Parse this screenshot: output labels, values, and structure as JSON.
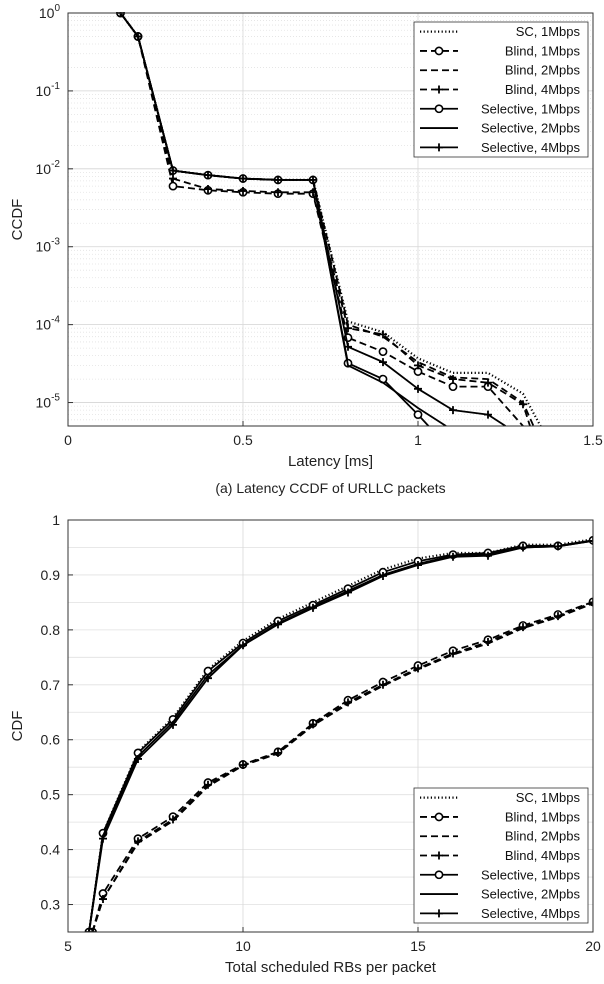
{
  "chart_data": [
    {
      "type": "line",
      "xlabel": "Latency [ms]",
      "ylabel": "CCDF",
      "caption": "(a) Latency CCDF of URLLC packets",
      "xlim": [
        0,
        1.5
      ],
      "ylim": [
        5e-06,
        1
      ],
      "yscale": "log",
      "xticks": [
        "0",
        "0.5",
        "1",
        "1.5"
      ],
      "yticks": [
        {
          "base": "10",
          "exp": "0"
        },
        {
          "base": "10",
          "exp": "-1"
        },
        {
          "base": "10",
          "exp": "-2"
        },
        {
          "base": "10",
          "exp": "-3"
        },
        {
          "base": "10",
          "exp": "-4"
        },
        {
          "base": "10",
          "exp": "-5"
        }
      ],
      "grid": true,
      "legend_position": "top-right",
      "series": [
        {
          "name": "SC, 1Mbps",
          "style": "dotted",
          "marker": "none",
          "x": [
            0.15,
            0.2,
            0.3,
            0.4,
            0.5,
            0.6,
            0.7,
            0.8,
            0.9,
            1.0,
            1.1,
            1.2,
            1.3,
            1.35
          ],
          "y": [
            1,
            0.5,
            0.0095,
            0.0083,
            0.0075,
            0.0072,
            0.0072,
            0.00011,
            8e-05,
            3.7e-05,
            2.4e-05,
            2.4e-05,
            1.3e-05,
            5e-06
          ]
        },
        {
          "name": "Blind, 1Mbps",
          "style": "dashed",
          "marker": "circle",
          "x": [
            0.15,
            0.2,
            0.3,
            0.4,
            0.5,
            0.6,
            0.7,
            0.8,
            0.9,
            1.0,
            1.1,
            1.2,
            1.3
          ],
          "y": [
            1,
            0.5,
            0.006,
            0.0053,
            0.005,
            0.0048,
            0.0048,
            6.8e-05,
            4.5e-05,
            2.5e-05,
            1.6e-05,
            1.6e-05,
            5e-06
          ]
        },
        {
          "name": "Blind, 2Mpbs",
          "style": "dashed",
          "marker": "none",
          "x": [
            0.15,
            0.2,
            0.3,
            0.4,
            0.5,
            0.6,
            0.7,
            0.8,
            0.9,
            1.0,
            1.1,
            1.2,
            1.3,
            1.33
          ],
          "y": [
            1,
            0.5,
            0.0095,
            0.0083,
            0.0075,
            0.0072,
            0.0072,
            0.0001,
            7e-05,
            3.3e-05,
            2.1e-05,
            2e-05,
            1e-05,
            5e-06
          ]
        },
        {
          "name": "Blind, 4Mbps",
          "style": "dashed",
          "marker": "plus",
          "x": [
            0.15,
            0.2,
            0.3,
            0.4,
            0.5,
            0.6,
            0.7,
            0.8,
            0.9,
            1.0,
            1.1,
            1.2,
            1.3,
            1.32
          ],
          "y": [
            1,
            0.5,
            0.0075,
            0.0055,
            0.0052,
            0.005,
            0.005,
            9e-05,
            7.5e-05,
            3e-05,
            2e-05,
            1.8e-05,
            9.5e-06,
            5e-06
          ]
        },
        {
          "name": "Selective, 1Mbps",
          "style": "solid",
          "marker": "circle",
          "x": [
            0.15,
            0.2,
            0.3,
            0.4,
            0.5,
            0.6,
            0.7,
            0.8,
            0.9,
            1.0,
            1.03
          ],
          "y": [
            1,
            0.5,
            0.0095,
            0.0083,
            0.0075,
            0.0072,
            0.0072,
            3.2e-05,
            2e-05,
            7e-06,
            5e-06
          ]
        },
        {
          "name": "Selective, 2Mpbs",
          "style": "solid",
          "marker": "none",
          "x": [
            0.15,
            0.2,
            0.3,
            0.4,
            0.5,
            0.6,
            0.7,
            0.8,
            0.9,
            1.0,
            1.08
          ],
          "y": [
            1,
            0.5,
            0.0095,
            0.0083,
            0.0075,
            0.0072,
            0.0072,
            3e-05,
            1.8e-05,
            8.5e-06,
            5e-06
          ]
        },
        {
          "name": "Selective, 4Mbps",
          "style": "solid",
          "marker": "plus",
          "x": [
            0.15,
            0.2,
            0.3,
            0.4,
            0.5,
            0.6,
            0.7,
            0.8,
            0.9,
            1.0,
            1.1,
            1.2,
            1.25
          ],
          "y": [
            1,
            0.5,
            0.0095,
            0.0083,
            0.0075,
            0.0072,
            0.0072,
            5.2e-05,
            3.3e-05,
            1.5e-05,
            8e-06,
            7e-06,
            5e-06
          ]
        }
      ]
    },
    {
      "type": "line",
      "xlabel": "Total scheduled RBs per packet",
      "ylabel": "CDF",
      "xlim": [
        5,
        20
      ],
      "ylim": [
        0.25,
        1
      ],
      "xticks": [
        "5",
        "10",
        "15",
        "20"
      ],
      "yticks": [
        "1",
        "0.9",
        "0.8",
        "0.7",
        "0.6",
        "0.5",
        "0.4",
        "0.3"
      ],
      "grid": true,
      "legend_position": "bottom-right",
      "series": [
        {
          "name": "SC, 1Mbps",
          "style": "dotted",
          "marker": "none",
          "x": [
            5.6,
            6,
            7,
            8,
            9,
            10,
            11,
            12,
            13,
            14,
            15,
            16,
            17,
            18,
            19,
            20
          ],
          "y": [
            0.25,
            0.43,
            0.578,
            0.64,
            0.728,
            0.78,
            0.82,
            0.85,
            0.88,
            0.91,
            0.93,
            0.94,
            0.94,
            0.955,
            0.955,
            0.965
          ]
        },
        {
          "name": "Blind, 1Mbps",
          "style": "dashed",
          "marker": "circle",
          "x": [
            5.7,
            6,
            7,
            8,
            9,
            10,
            11,
            12,
            13,
            14,
            15,
            16,
            17,
            18,
            19,
            20
          ],
          "y": [
            0.25,
            0.32,
            0.42,
            0.46,
            0.522,
            0.555,
            0.578,
            0.63,
            0.672,
            0.705,
            0.735,
            0.762,
            0.782,
            0.808,
            0.828,
            0.851
          ]
        },
        {
          "name": "Blind, 2Mpbs",
          "style": "dashed",
          "marker": "none",
          "x": [
            5.7,
            6,
            7,
            8,
            9,
            10,
            11,
            12,
            13,
            14,
            15,
            16,
            17,
            18,
            19,
            20
          ],
          "y": [
            0.25,
            0.31,
            0.412,
            0.452,
            0.515,
            0.553,
            0.575,
            0.626,
            0.665,
            0.698,
            0.728,
            0.755,
            0.775,
            0.803,
            0.823,
            0.848
          ]
        },
        {
          "name": "Blind, 4Mbps",
          "style": "dashed",
          "marker": "plus",
          "x": [
            5.7,
            6,
            7,
            8,
            9,
            10,
            11,
            12,
            13,
            14,
            15,
            16,
            17,
            18,
            19,
            20
          ],
          "y": [
            0.25,
            0.31,
            0.415,
            0.455,
            0.518,
            0.554,
            0.576,
            0.628,
            0.668,
            0.7,
            0.73,
            0.757,
            0.778,
            0.805,
            0.825,
            0.85
          ]
        },
        {
          "name": "Selective, 1Mbps",
          "style": "solid",
          "marker": "circle",
          "x": [
            5.6,
            6,
            7,
            8,
            9,
            10,
            11,
            12,
            13,
            14,
            15,
            16,
            17,
            18,
            19,
            20
          ],
          "y": [
            0.25,
            0.43,
            0.576,
            0.637,
            0.725,
            0.776,
            0.816,
            0.845,
            0.875,
            0.905,
            0.925,
            0.937,
            0.94,
            0.953,
            0.953,
            0.963
          ]
        },
        {
          "name": "Selective, 2Mpbs",
          "style": "solid",
          "marker": "none",
          "x": [
            5.6,
            6,
            7,
            8,
            9,
            10,
            11,
            12,
            13,
            14,
            15,
            16,
            17,
            18,
            19,
            20
          ],
          "y": [
            0.25,
            0.425,
            0.57,
            0.632,
            0.718,
            0.772,
            0.812,
            0.842,
            0.871,
            0.9,
            0.92,
            0.935,
            0.938,
            0.95,
            0.952,
            0.962
          ]
        },
        {
          "name": "Selective, 4Mbps",
          "style": "solid",
          "marker": "plus",
          "x": [
            5.6,
            6,
            7,
            8,
            9,
            10,
            11,
            12,
            13,
            14,
            15,
            16,
            17,
            18,
            19,
            20
          ],
          "y": [
            0.25,
            0.42,
            0.565,
            0.627,
            0.712,
            0.772,
            0.81,
            0.84,
            0.868,
            0.898,
            0.918,
            0.933,
            0.935,
            0.95,
            0.952,
            0.962
          ]
        }
      ]
    }
  ]
}
